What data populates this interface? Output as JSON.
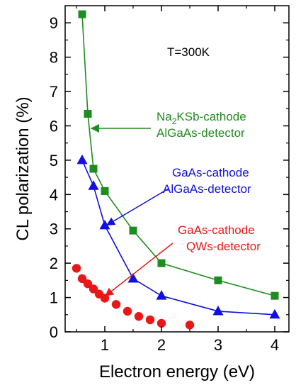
{
  "chart_data": {
    "type": "scatter",
    "xlabel": "Electron energy (eV)",
    "ylabel": "CL polarization (%)",
    "xlim": [
      0.3,
      4.25
    ],
    "ylim": [
      0,
      9.5
    ],
    "x_ticks": [
      1,
      2,
      3,
      4
    ],
    "y_ticks": [
      0,
      1,
      2,
      3,
      4,
      5,
      6,
      7,
      8,
      9
    ],
    "grid": false,
    "annotations": {
      "temperature": "T=300K"
    },
    "series": [
      {
        "label_line1_prefix": "Na",
        "label_line1_sub1": "2",
        "label_line1_mid": "KSb",
        "label_line1_suffix": "-cathode",
        "label_line2": "AlGaAs-detector",
        "color": "#1e8c1e",
        "marker": "square",
        "connected": true,
        "x": [
          0.6,
          0.7,
          0.8,
          1.0,
          1.5,
          2.0,
          3.0,
          4.0
        ],
        "y": [
          9.25,
          6.35,
          4.75,
          4.1,
          2.95,
          2.0,
          1.5,
          1.05
        ]
      },
      {
        "label_line1": "GaAs-cathode",
        "label_line2": "AlGaAs-detector",
        "color": "#1010e0",
        "marker": "triangle",
        "connected": true,
        "x": [
          0.6,
          0.8,
          1.0,
          1.5,
          2.0,
          3.0,
          4.0
        ],
        "y": [
          5.0,
          4.25,
          3.1,
          1.55,
          1.05,
          0.6,
          0.5
        ]
      },
      {
        "label_line1": "GaAs-cathode",
        "label_line2": "QWs-detector",
        "color": "#e81818",
        "marker": "circle",
        "connected": false,
        "x": [
          0.5,
          0.6,
          0.7,
          0.8,
          0.9,
          1.0,
          1.2,
          1.4,
          1.6,
          1.8,
          2.0,
          2.5
        ],
        "y": [
          1.85,
          1.55,
          1.4,
          1.25,
          1.1,
          0.98,
          0.8,
          0.6,
          0.45,
          0.35,
          0.25,
          0.2
        ]
      }
    ]
  }
}
